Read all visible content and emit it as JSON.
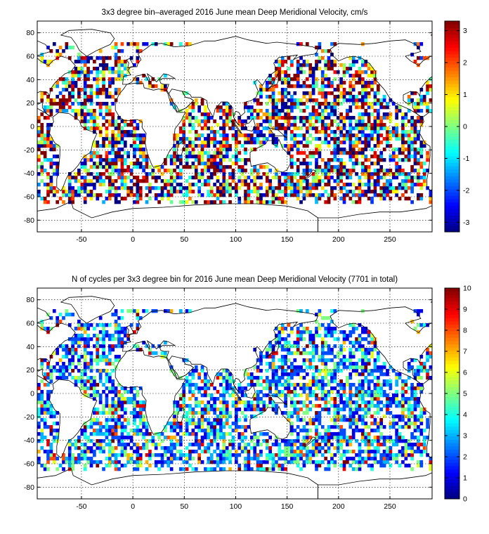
{
  "chart_data": [
    {
      "type": "heatmap",
      "title": "3x3 degree bin–averaged 2016 June mean Deep Meridional Velocity, cm/s",
      "xlabel": "",
      "ylabel": "",
      "xlim": [
        -93,
        291
      ],
      "ylim": [
        -90,
        90
      ],
      "xticks": [
        -50,
        0,
        50,
        100,
        150,
        200,
        250
      ],
      "yticks": [
        -80,
        -60,
        -40,
        -20,
        0,
        20,
        40,
        60,
        80
      ],
      "grid": true,
      "bin_size_deg": 3,
      "colormap": "jet",
      "colorbar": {
        "range": [
          -3.3,
          3.3
        ],
        "ticks": [
          -3,
          -2,
          -1,
          0,
          1,
          2,
          3
        ]
      },
      "color_scale_min": -3.3,
      "color_scale_max": 3.3
    },
    {
      "type": "heatmap",
      "title": "N of cycles per 3x3 degree bin for 2016 June mean Deep Meridional Velocity (7701 in total)",
      "xlabel": "",
      "ylabel": "",
      "xlim": [
        -93,
        291
      ],
      "ylim": [
        -90,
        90
      ],
      "xticks": [
        -50,
        0,
        50,
        100,
        150,
        200,
        250
      ],
      "yticks": [
        -80,
        -60,
        -40,
        -20,
        0,
        20,
        40,
        60,
        80
      ],
      "grid": true,
      "bin_size_deg": 3,
      "colormap": "jet",
      "colorbar": {
        "range": [
          0,
          10
        ],
        "ticks": [
          0,
          1,
          2,
          3,
          4,
          5,
          6,
          7,
          8,
          9,
          10
        ]
      },
      "color_scale_min": 0,
      "color_scale_max": 10,
      "total_cycles": 7701
    }
  ]
}
